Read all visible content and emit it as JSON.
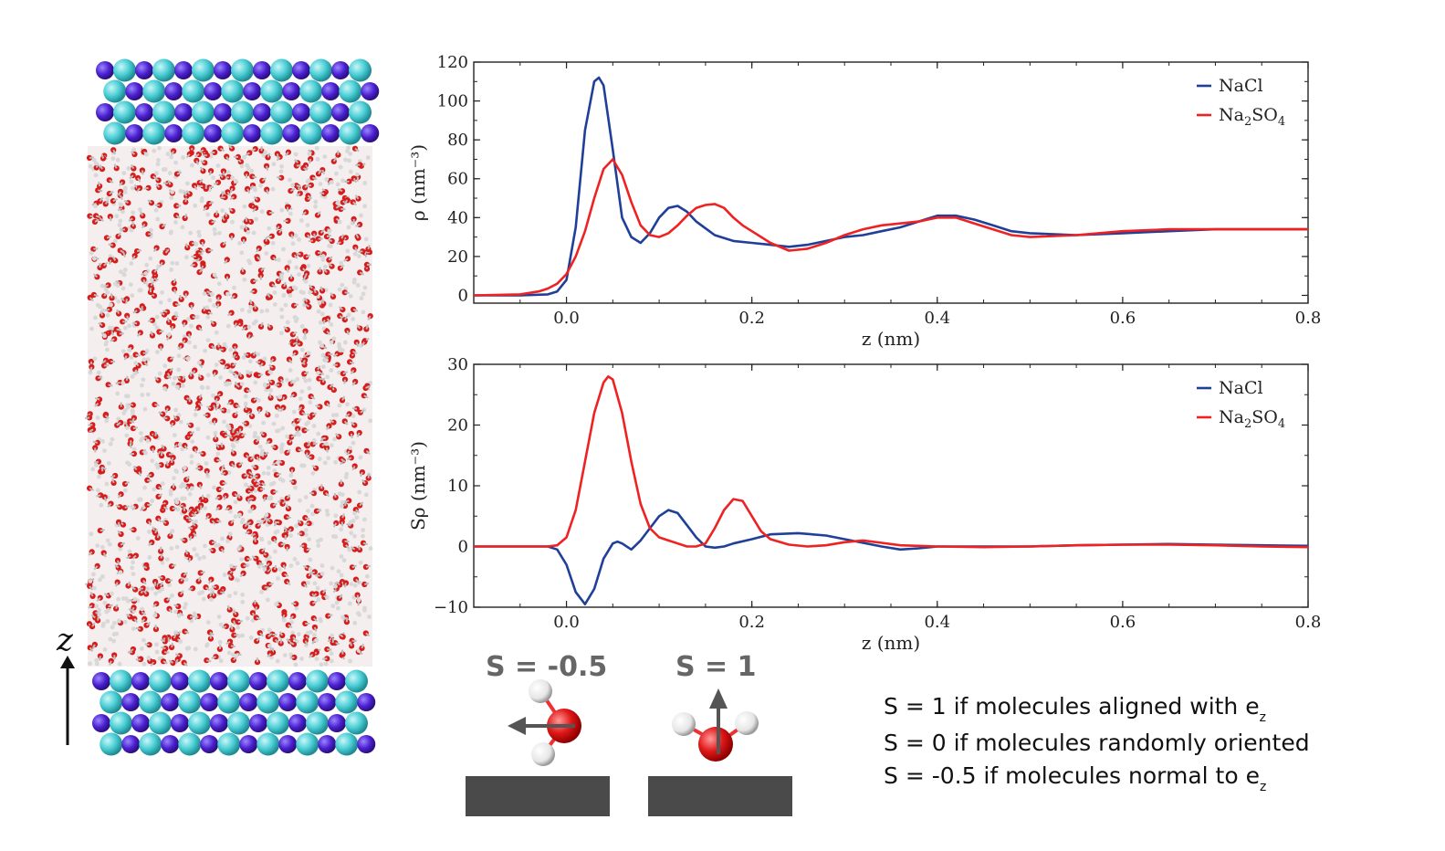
{
  "colors": {
    "nacl": "#1f3f99",
    "na2so4": "#ee2222",
    "cation": "#4b1fcf",
    "anion": "#4ccfd6",
    "oxygen": "#dd1a1a",
    "hydrogen": "#e6e6e6",
    "surface": "#4a4a4a",
    "arrow": "#555555"
  },
  "simulation_box": {
    "axis_label": "z"
  },
  "chart_data": [
    {
      "type": "line",
      "ylabel": "ρ (nm⁻³)",
      "xlabel": "z (nm)",
      "xlim": [
        -0.1,
        0.8
      ],
      "ylim": [
        -4,
        120
      ],
      "xticks": [
        "0.0",
        "0.2",
        "0.4",
        "0.6",
        "0.8"
      ],
      "xtick_values": [
        0.0,
        0.2,
        0.4,
        0.6,
        0.8
      ],
      "yticks": [
        "0",
        "20",
        "40",
        "60",
        "80",
        "100",
        "120"
      ],
      "ytick_values": [
        0,
        20,
        40,
        60,
        80,
        100,
        120
      ],
      "legend_position": "top-right",
      "series": [
        {
          "name": "NaCl",
          "color_key": "nacl",
          "x": [
            -0.1,
            -0.05,
            -0.02,
            -0.01,
            0.0,
            0.01,
            0.02,
            0.03,
            0.035,
            0.04,
            0.05,
            0.06,
            0.07,
            0.08,
            0.09,
            0.1,
            0.11,
            0.12,
            0.13,
            0.14,
            0.16,
            0.18,
            0.2,
            0.22,
            0.24,
            0.26,
            0.28,
            0.3,
            0.32,
            0.34,
            0.36,
            0.38,
            0.4,
            0.42,
            0.44,
            0.46,
            0.48,
            0.5,
            0.55,
            0.6,
            0.65,
            0.7,
            0.75,
            0.8
          ],
          "y": [
            0,
            0,
            0.5,
            2,
            8,
            35,
            85,
            110,
            112,
            108,
            75,
            40,
            30,
            27,
            32,
            40,
            45,
            46,
            43,
            38,
            31,
            28,
            27,
            26,
            25,
            26,
            28,
            30,
            31,
            33,
            35,
            38,
            41,
            41,
            39,
            36,
            33,
            32,
            31,
            32,
            33,
            34,
            34,
            34
          ]
        },
        {
          "name": "Na2SO4",
          "color_key": "na2so4",
          "x": [
            -0.1,
            -0.05,
            -0.03,
            -0.02,
            -0.01,
            0.0,
            0.01,
            0.02,
            0.03,
            0.04,
            0.05,
            0.06,
            0.07,
            0.08,
            0.09,
            0.1,
            0.11,
            0.12,
            0.13,
            0.14,
            0.15,
            0.16,
            0.17,
            0.18,
            0.19,
            0.2,
            0.22,
            0.24,
            0.26,
            0.28,
            0.3,
            0.32,
            0.34,
            0.36,
            0.38,
            0.4,
            0.42,
            0.44,
            0.46,
            0.48,
            0.5,
            0.55,
            0.6,
            0.65,
            0.7,
            0.75,
            0.8
          ],
          "y": [
            0,
            0.5,
            2,
            3.5,
            6,
            11,
            20,
            33,
            50,
            65,
            70,
            62,
            48,
            36,
            31,
            30,
            32,
            36,
            41,
            45,
            46.5,
            47,
            45,
            40,
            36,
            33,
            27,
            23,
            24,
            27,
            31,
            34,
            36,
            37,
            38,
            40,
            40,
            37,
            34,
            31,
            30,
            31,
            33,
            34,
            34,
            34,
            34
          ]
        }
      ]
    },
    {
      "type": "line",
      "ylabel": "Sρ (nm⁻³)",
      "xlabel": "z (nm)",
      "xlim": [
        -0.1,
        0.8
      ],
      "ylim": [
        -10,
        30
      ],
      "xticks": [
        "0.0",
        "0.2",
        "0.4",
        "0.6",
        "0.8"
      ],
      "xtick_values": [
        0.0,
        0.2,
        0.4,
        0.6,
        0.8
      ],
      "yticks": [
        "−10",
        "0",
        "10",
        "20",
        "30"
      ],
      "ytick_values": [
        -10,
        0,
        10,
        20,
        30
      ],
      "legend_position": "top-right",
      "series": [
        {
          "name": "NaCl",
          "color_key": "nacl",
          "x": [
            -0.1,
            -0.05,
            -0.02,
            -0.01,
            0.0,
            0.01,
            0.02,
            0.03,
            0.04,
            0.05,
            0.055,
            0.06,
            0.07,
            0.08,
            0.09,
            0.1,
            0.11,
            0.12,
            0.13,
            0.14,
            0.15,
            0.16,
            0.17,
            0.18,
            0.2,
            0.22,
            0.25,
            0.28,
            0.3,
            0.32,
            0.34,
            0.36,
            0.38,
            0.4,
            0.45,
            0.5,
            0.55,
            0.6,
            0.65,
            0.7,
            0.75,
            0.8
          ],
          "y": [
            0,
            0,
            0,
            -0.5,
            -3,
            -7.5,
            -9.5,
            -7,
            -2,
            0.5,
            0.8,
            0.5,
            -0.5,
            1,
            3,
            5,
            6,
            5.5,
            3.5,
            1.5,
            0,
            -0.2,
            0,
            0.5,
            1.2,
            2,
            2.2,
            1.8,
            1.2,
            0.6,
            0,
            -0.5,
            -0.3,
            0,
            0,
            0,
            0.2,
            0.3,
            0.4,
            0.3,
            0.2,
            0.1
          ]
        },
        {
          "name": "Na2SO4",
          "color_key": "na2so4",
          "x": [
            -0.1,
            -0.05,
            -0.02,
            -0.01,
            0.0,
            0.01,
            0.02,
            0.03,
            0.04,
            0.045,
            0.05,
            0.06,
            0.07,
            0.08,
            0.09,
            0.1,
            0.11,
            0.12,
            0.13,
            0.14,
            0.15,
            0.16,
            0.17,
            0.18,
            0.19,
            0.2,
            0.21,
            0.22,
            0.24,
            0.26,
            0.28,
            0.3,
            0.32,
            0.34,
            0.36,
            0.4,
            0.45,
            0.5,
            0.55,
            0.6,
            0.65,
            0.7,
            0.75,
            0.8
          ],
          "y": [
            0,
            0,
            0,
            0.2,
            1.5,
            6,
            14,
            22,
            27,
            28,
            27.5,
            22,
            14,
            7,
            3,
            1.5,
            1,
            0.5,
            0,
            0,
            0.5,
            3,
            6,
            7.8,
            7.5,
            5,
            2.5,
            1.2,
            0.3,
            0,
            0.2,
            0.7,
            1,
            0.6,
            0.2,
            0,
            -0.1,
            0,
            0.2,
            0.3,
            0.3,
            0.2,
            0,
            -0.1
          ]
        }
      ]
    }
  ],
  "orientation_diagram": {
    "left_label": "S = -0.5",
    "right_label": "S = 1"
  },
  "notes": {
    "line1": "S = 1 if molecules aligned with e",
    "line2": "S = 0 if molecules randomly oriented",
    "line3": "S = -0.5 if molecules normal to e",
    "subscript": "z"
  }
}
